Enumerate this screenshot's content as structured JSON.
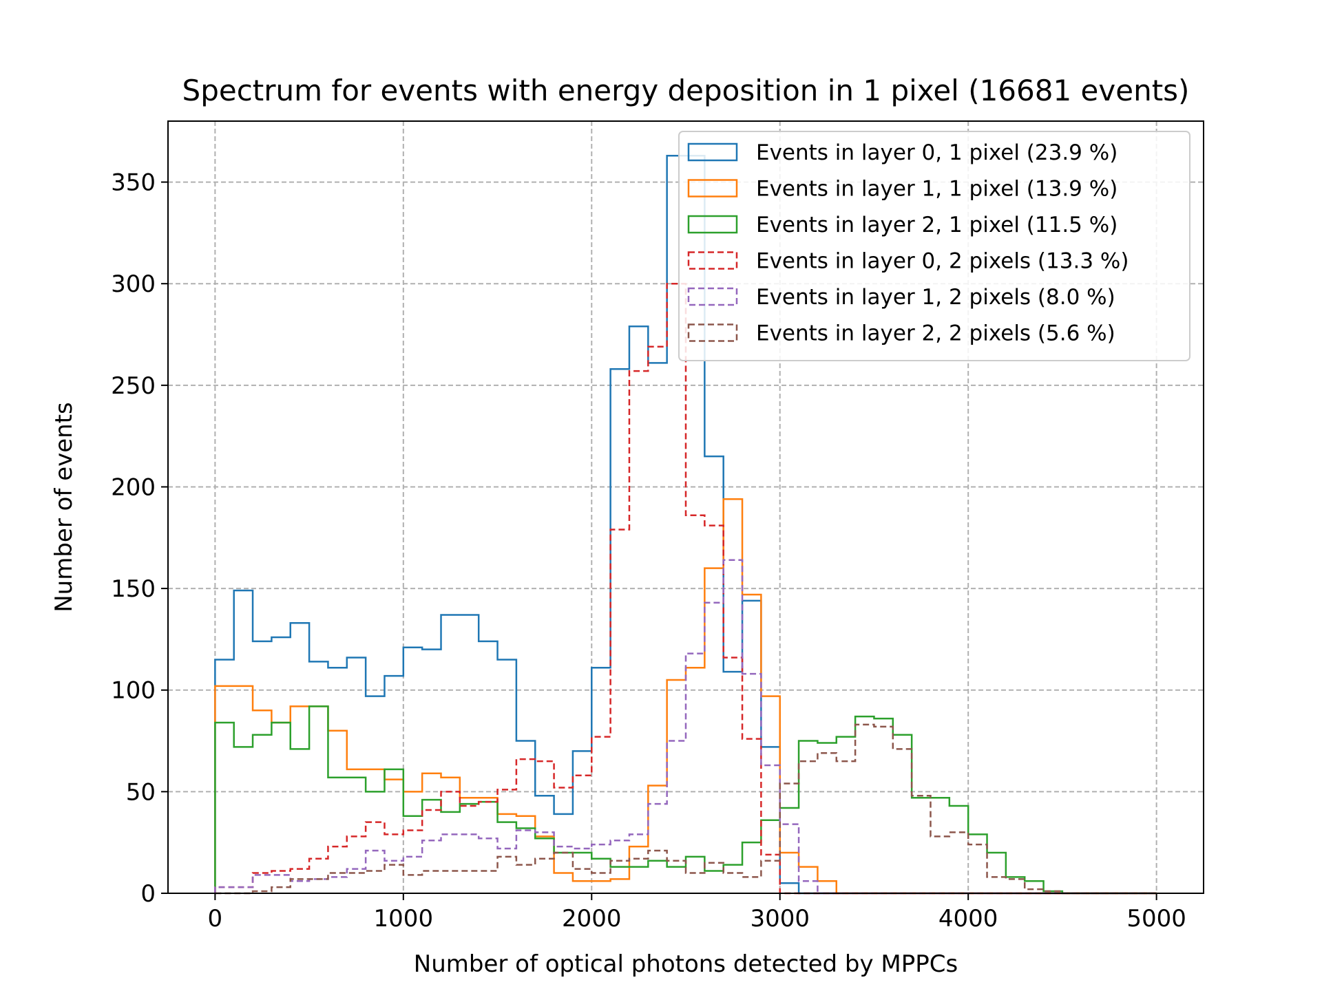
{
  "chart_data": {
    "type": "histogram",
    "title": "Spectrum for events with energy deposition in 1 pixel (16681 events)",
    "xlabel": "Number of optical photons detected by MPPCs",
    "ylabel": "Number of events",
    "xlim": [
      -250,
      5250
    ],
    "ylim": [
      0,
      380
    ],
    "xticks": [
      0,
      1000,
      2000,
      3000,
      4000,
      5000
    ],
    "yticks": [
      0,
      50,
      100,
      150,
      200,
      250,
      300,
      350
    ],
    "grid": true,
    "legend_position": "upper right",
    "bin_start": 0,
    "bin_width": 100,
    "series": [
      {
        "name": "Events in layer 0, 1 pixel (23.9 %)",
        "color": "#1f77b4",
        "dashed": false,
        "values": [
          115,
          149,
          124,
          126,
          133,
          114,
          111,
          116,
          97,
          107,
          121,
          120,
          137,
          137,
          124,
          115,
          75,
          48,
          39,
          70,
          111,
          258,
          279,
          261,
          363,
          363,
          215,
          109,
          144,
          72,
          5,
          0,
          0,
          0,
          0,
          0,
          0,
          0,
          0,
          0,
          0,
          0,
          0,
          0,
          0,
          0,
          0,
          0,
          0,
          0
        ]
      },
      {
        "name": "Events in layer 1, 1 pixel (13.9 %)",
        "color": "#ff7f0e",
        "dashed": false,
        "values": [
          102,
          102,
          90,
          84,
          92,
          92,
          80,
          61,
          61,
          56,
          50,
          59,
          57,
          47,
          47,
          39,
          38,
          28,
          10,
          6,
          6,
          7,
          23,
          53,
          105,
          111,
          160,
          194,
          147,
          97,
          20,
          13,
          6,
          0,
          0,
          0,
          0,
          0,
          0,
          0,
          0,
          0,
          0,
          0,
          0,
          0,
          0,
          0,
          0,
          0
        ]
      },
      {
        "name": "Events in layer 2, 1 pixel (11.5 %)",
        "color": "#2ca02c",
        "dashed": false,
        "values": [
          84,
          72,
          78,
          84,
          71,
          92,
          57,
          57,
          50,
          61,
          38,
          46,
          40,
          44,
          45,
          35,
          32,
          27,
          20,
          20,
          17,
          13,
          13,
          16,
          13,
          18,
          11,
          14,
          25,
          36,
          42,
          75,
          74,
          77,
          87,
          86,
          78,
          47,
          47,
          43,
          29,
          20,
          8,
          6,
          1,
          0,
          0,
          0,
          0,
          0
        ]
      },
      {
        "name": "Events in layer 0, 2 pixels (13.3 %)",
        "color": "#d62728",
        "dashed": true,
        "values": [
          3,
          3,
          10,
          11,
          12,
          17,
          23,
          28,
          35,
          29,
          31,
          41,
          50,
          43,
          45,
          51,
          66,
          65,
          52,
          58,
          77,
          179,
          257,
          269,
          300,
          186,
          181,
          116,
          76,
          19,
          0,
          0,
          0,
          0,
          0,
          0,
          0,
          0,
          0,
          0,
          0,
          0,
          0,
          0,
          0,
          0,
          0,
          0,
          0,
          0
        ]
      },
      {
        "name": "Events in layer 1, 2 pixels (8.0 %)",
        "color": "#9467bd",
        "dashed": true,
        "values": [
          3,
          3,
          9,
          9,
          6,
          7,
          8,
          12,
          21,
          16,
          18,
          26,
          29,
          29,
          27,
          22,
          31,
          30,
          23,
          22,
          24,
          26,
          29,
          44,
          75,
          118,
          143,
          164,
          108,
          63,
          34,
          6,
          0,
          0,
          0,
          0,
          0,
          0,
          0,
          0,
          0,
          0,
          0,
          0,
          0,
          0,
          0,
          0,
          0,
          0
        ]
      },
      {
        "name": "Events in layer 2, 2 pixels (5.6 %)",
        "color": "#8c564b",
        "dashed": true,
        "values": [
          0,
          0,
          1,
          3,
          7,
          7,
          10,
          10,
          11,
          14,
          9,
          11,
          11,
          11,
          11,
          18,
          14,
          17,
          20,
          12,
          10,
          16,
          17,
          21,
          16,
          10,
          15,
          10,
          8,
          16,
          54,
          65,
          69,
          65,
          83,
          82,
          71,
          48,
          28,
          30,
          24,
          8,
          7,
          2,
          1,
          0,
          0,
          0,
          0,
          0
        ]
      }
    ]
  }
}
